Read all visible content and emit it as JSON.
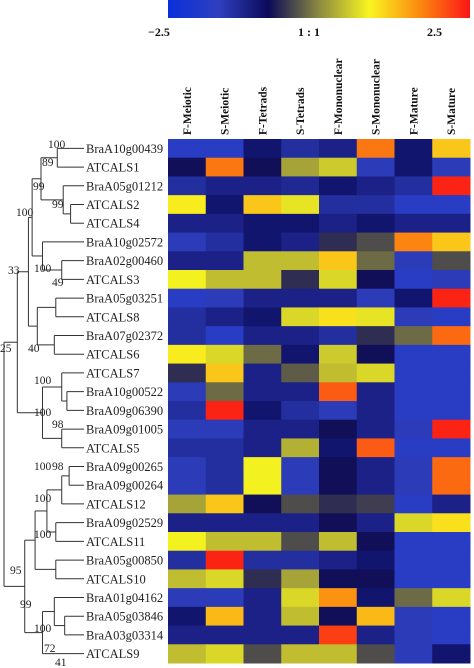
{
  "chart_data": {
    "type": "heatmap",
    "title": "",
    "colorbar": {
      "min_label": "−2.5",
      "mid_label": "1 : 1",
      "max_label": "2.5",
      "min": -2.5,
      "max": 2.5,
      "stops": [
        "#0a2fd9",
        "#2f3fc0",
        "#0b0a59",
        "#8c8a40",
        "#f8f520",
        "#fb8a10",
        "#fb1515"
      ]
    },
    "columns": [
      "F-Meiotic",
      "S-Meiotic",
      "F-Tetrads",
      "S-Tetrads",
      "F-Mononuclear",
      "S-Mononuclear",
      "F-Mature",
      "S-Mature"
    ],
    "rows": [
      "BraA10g00439",
      "ATCALS1",
      "BraA05g01212",
      "ATCALS2",
      "ATCALS4",
      "BraA10g02572",
      "BraA02g00460",
      "ATCALS3",
      "BraA05g03251",
      "ATCALS8",
      "BraA07g02372",
      "ATCALS6",
      "ATCALS7",
      "BraA10g00522",
      "BraA09g06390",
      "BraA09g01005",
      "ATCALS5",
      "BraA09g00265",
      "BraA09g00264",
      "ATCALS12",
      "BraA09g02529",
      "ATCALS11",
      "BraA05g00850",
      "ATCALS10",
      "BraA01g04162",
      "BraA05g03846",
      "BraA03g03314",
      "ATCALS9"
    ],
    "values": [
      [
        -1.8,
        -1.8,
        -1.0,
        -1.4,
        -1.2,
        1.8,
        -1.0,
        1.2
      ],
      [
        -0.8,
        1.8,
        -0.8,
        0.2,
        0.5,
        -1.6,
        -1.0,
        -1.6
      ],
      [
        -1.4,
        -1.2,
        -1.2,
        -1.3,
        -1.0,
        -1.2,
        -1.4,
        2.4
      ],
      [
        0.9,
        -1.0,
        1.2,
        0.7,
        -1.4,
        -1.4,
        -1.8,
        -1.8
      ],
      [
        -1.2,
        -1.2,
        -1.0,
        -1.0,
        -1.2,
        -1.0,
        -1.2,
        -1.2
      ],
      [
        -1.6,
        -1.4,
        -1.0,
        -1.2,
        -0.6,
        -0.4,
        1.7,
        1.2
      ],
      [
        -1.2,
        -1.2,
        0.4,
        0.4,
        1.2,
        -0.2,
        -1.6,
        -0.4
      ],
      [
        0.8,
        0.4,
        0.4,
        -0.6,
        0.6,
        -0.8,
        -1.8,
        -1.6
      ],
      [
        -1.8,
        -1.6,
        -1.2,
        -1.2,
        -1.2,
        -1.6,
        -1.0,
        2.4
      ],
      [
        -1.4,
        -1.2,
        -1.0,
        0.6,
        1.0,
        0.7,
        -1.6,
        -1.8
      ],
      [
        -1.4,
        -1.8,
        -1.2,
        -1.2,
        -1.4,
        -0.6,
        -0.2,
        1.9
      ],
      [
        0.9,
        0.6,
        -0.2,
        -1.0,
        0.5,
        -0.8,
        -1.8,
        -1.8
      ],
      [
        -0.6,
        1.2,
        -1.2,
        -0.3,
        0.4,
        0.6,
        -1.8,
        -1.8
      ],
      [
        -1.6,
        -0.2,
        -1.2,
        -1.2,
        2.0,
        -1.2,
        -1.8,
        -1.8
      ],
      [
        -1.4,
        2.4,
        -1.0,
        -1.4,
        -1.6,
        -1.2,
        -1.8,
        -1.8
      ],
      [
        -1.6,
        -1.6,
        -1.2,
        -1.2,
        -0.8,
        -1.2,
        -1.6,
        2.4
      ],
      [
        -1.4,
        -1.4,
        -1.2,
        0.3,
        -1.0,
        2.0,
        -1.8,
        -1.8
      ],
      [
        -1.6,
        -1.4,
        0.8,
        -1.6,
        -0.8,
        -1.2,
        -1.6,
        1.9
      ],
      [
        -1.6,
        -1.4,
        0.8,
        -1.6,
        -0.8,
        -1.2,
        -1.6,
        1.9
      ],
      [
        0.2,
        1.2,
        -0.8,
        -0.4,
        -0.6,
        -0.5,
        -1.8,
        -1.2
      ],
      [
        -1.2,
        -1.2,
        -1.2,
        -1.2,
        -0.8,
        -1.2,
        0.6,
        1.0
      ],
      [
        0.8,
        0.4,
        0.4,
        -0.4,
        0.4,
        -0.8,
        -1.8,
        -1.8
      ],
      [
        -1.4,
        2.4,
        -1.4,
        -1.4,
        -1.2,
        -1.0,
        -1.8,
        -1.8
      ],
      [
        0.4,
        0.6,
        -0.6,
        0.2,
        -0.8,
        -0.8,
        -1.8,
        -1.8
      ],
      [
        -1.6,
        -1.6,
        -1.2,
        0.6,
        1.6,
        -1.0,
        -0.2,
        0.6
      ],
      [
        -1.0,
        1.3,
        -1.2,
        0.4,
        -0.8,
        1.3,
        -1.6,
        -1.8
      ],
      [
        -1.2,
        -1.2,
        -1.2,
        -1.2,
        2.2,
        -1.2,
        -1.6,
        -1.8
      ],
      [
        0.4,
        0.6,
        -0.4,
        0.4,
        0.4,
        -0.4,
        -1.6,
        -1.0
      ]
    ],
    "dendrogram_labels": [
      "100",
      "89",
      "99",
      "99",
      "100",
      "33",
      "100",
      "49",
      "40",
      "25",
      "100",
      "100",
      "98",
      "100",
      "98",
      "100",
      "100",
      "95",
      "99",
      "100",
      "72",
      "41"
    ]
  }
}
